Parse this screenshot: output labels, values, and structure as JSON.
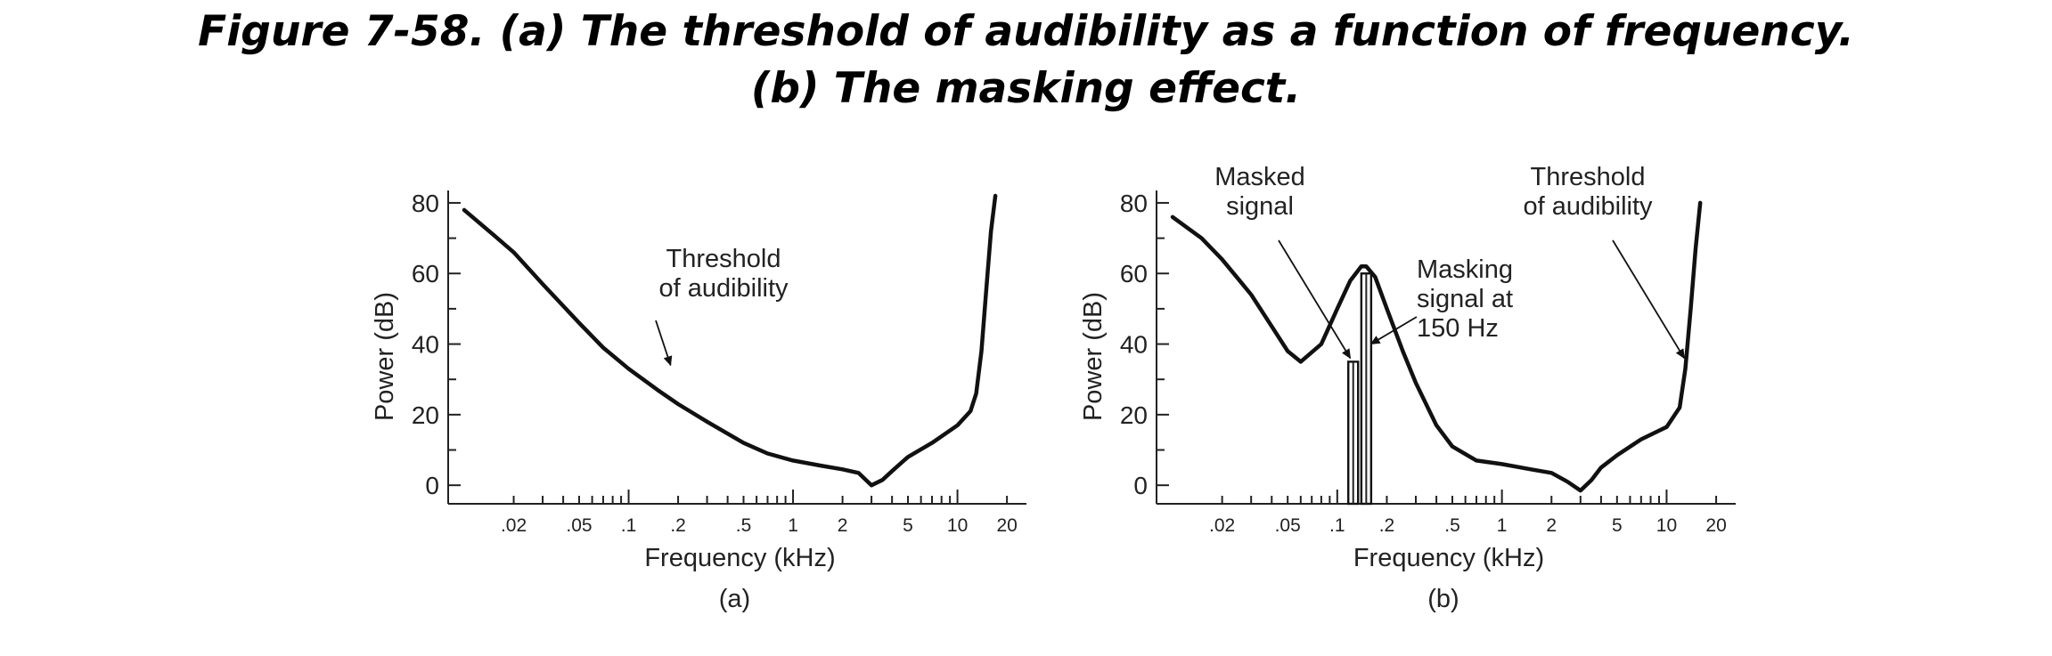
{
  "caption": {
    "line1": "Figure 7-58. (a) The threshold of audibility as a function of frequency.",
    "line2": "(b) The masking effect."
  },
  "chart_data": [
    {
      "type": "line",
      "panel_label": "(a)",
      "xlabel": "Frequency (kHz)",
      "ylabel": "Power (dB)",
      "x_scale": "log",
      "xlim": [
        0.01,
        25
      ],
      "ylim": [
        -5,
        82
      ],
      "x_ticks": [
        {
          "value": 0.02,
          "label": ".02"
        },
        {
          "value": 0.05,
          "label": ".05"
        },
        {
          "value": 0.1,
          "label": ".1"
        },
        {
          "value": 0.2,
          "label": ".2"
        },
        {
          "value": 0.5,
          "label": ".5"
        },
        {
          "value": 1,
          "label": "1"
        },
        {
          "value": 2,
          "label": "2"
        },
        {
          "value": 5,
          "label": "5"
        },
        {
          "value": 10,
          "label": "10"
        },
        {
          "value": 20,
          "label": "20"
        }
      ],
      "y_ticks": [
        {
          "value": 0,
          "label": "0"
        },
        {
          "value": 20,
          "label": "20"
        },
        {
          "value": 40,
          "label": "40"
        },
        {
          "value": 60,
          "label": "60"
        },
        {
          "value": 80,
          "label": "80"
        }
      ],
      "series": [
        {
          "x": [
            0.01,
            0.015,
            0.02,
            0.03,
            0.05,
            0.07,
            0.1,
            0.15,
            0.2,
            0.3,
            0.5,
            0.7,
            1,
            1.5,
            2,
            2.5,
            3,
            3.5,
            4,
            5,
            7,
            10,
            12,
            13,
            14,
            15,
            16,
            17
          ],
          "y": [
            78,
            71,
            66,
            57,
            46,
            39,
            33,
            27,
            23,
            18,
            12,
            9,
            7,
            5.5,
            4.5,
            3.5,
            0,
            1.5,
            4,
            8,
            12,
            17,
            21,
            26,
            38,
            56,
            72,
            82
          ]
        }
      ],
      "annotations": [
        {
          "text": [
            "Threshold",
            "of audibility"
          ],
          "target": {
            "x": 0.18,
            "y": 34
          }
        }
      ]
    },
    {
      "type": "line",
      "panel_label": "(b)",
      "xlabel": "Frequency (kHz)",
      "ylabel": "Power (dB)",
      "x_scale": "log",
      "xlim": [
        0.01,
        25
      ],
      "ylim": [
        -5,
        82
      ],
      "x_ticks": [
        {
          "value": 0.02,
          "label": ".02"
        },
        {
          "value": 0.05,
          "label": ".05"
        },
        {
          "value": 0.1,
          "label": ".1"
        },
        {
          "value": 0.2,
          "label": ".2"
        },
        {
          "value": 0.5,
          "label": ".5"
        },
        {
          "value": 1,
          "label": "1"
        },
        {
          "value": 2,
          "label": "2"
        },
        {
          "value": 5,
          "label": "5"
        },
        {
          "value": 10,
          "label": "10"
        },
        {
          "value": 20,
          "label": "20"
        }
      ],
      "y_ticks": [
        {
          "value": 0,
          "label": "0"
        },
        {
          "value": 20,
          "label": "20"
        },
        {
          "value": 40,
          "label": "40"
        },
        {
          "value": 60,
          "label": "60"
        },
        {
          "value": 80,
          "label": "80"
        }
      ],
      "series": [
        {
          "x": [
            0.01,
            0.015,
            0.02,
            0.03,
            0.04,
            0.05,
            0.06,
            0.08,
            0.1,
            0.12,
            0.14,
            0.15,
            0.17,
            0.2,
            0.25,
            0.3,
            0.4,
            0.5,
            0.7,
            1,
            1.5,
            2,
            2.5,
            3,
            3.5,
            4,
            5,
            7,
            10,
            12,
            13,
            14,
            15,
            16
          ],
          "y": [
            76,
            70,
            64,
            54,
            45,
            38,
            35,
            40,
            50,
            58,
            62,
            62,
            59,
            50,
            38,
            29,
            17,
            11,
            7,
            6,
            4.5,
            3.5,
            1,
            -1.5,
            1.5,
            5,
            8.5,
            13,
            16.5,
            22,
            33,
            50,
            67,
            80
          ]
        }
      ],
      "bars": [
        {
          "x": 0.125,
          "value": 35,
          "label": "Masked signal"
        },
        {
          "x": 0.15,
          "value": 60,
          "label": "Masking signal at 150 Hz"
        }
      ],
      "annotations": [
        {
          "text": [
            "Masked",
            "signal"
          ],
          "target": {
            "x": 0.12,
            "y": 36
          }
        },
        {
          "text": [
            "Masking",
            "signal at",
            "150 Hz"
          ],
          "target": {
            "x": 0.16,
            "y": 40
          }
        },
        {
          "text": [
            "Threshold",
            "of audibility"
          ],
          "target": {
            "x": 12.8,
            "y": 36
          }
        }
      ]
    }
  ]
}
